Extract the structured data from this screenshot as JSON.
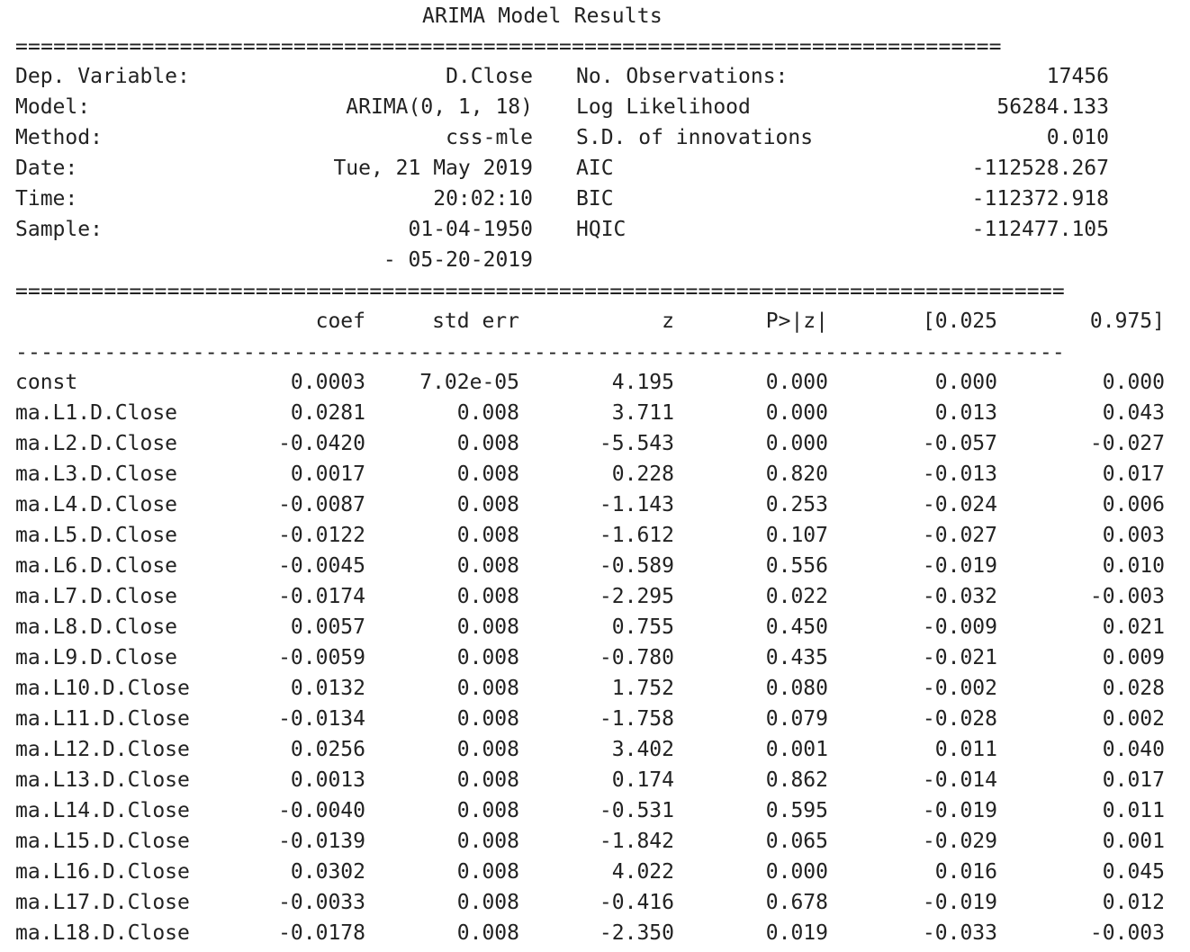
{
  "title": "ARIMA Model Results",
  "separators": {
    "double_short": "==============================================================================",
    "double_long": "===================================================================================",
    "single_long": "-----------------------------------------------------------------------------------"
  },
  "summary": {
    "left": [
      {
        "label": "Dep. Variable:",
        "value": "D.Close"
      },
      {
        "label": "Model:",
        "value": "ARIMA(0, 1, 18)"
      },
      {
        "label": "Method:",
        "value": "css-mle"
      },
      {
        "label": "Date:",
        "value": "Tue, 21 May 2019"
      },
      {
        "label": "Time:",
        "value": "20:02:10"
      },
      {
        "label": "Sample:",
        "value": "01-04-1950"
      },
      {
        "label": "",
        "value": "- 05-20-2019"
      }
    ],
    "right": [
      {
        "label": "No. Observations:",
        "value": "17456"
      },
      {
        "label": "Log Likelihood",
        "value": "56284.133"
      },
      {
        "label": "S.D. of innovations",
        "value": "0.010"
      },
      {
        "label": "AIC",
        "value": "-112528.267"
      },
      {
        "label": "BIC",
        "value": "-112372.918"
      },
      {
        "label": "HQIC",
        "value": "-112477.105"
      }
    ]
  },
  "coef_table": {
    "headers": [
      "coef",
      "std err",
      "z",
      "P>|z|",
      "[0.025",
      "0.975]"
    ],
    "rows": [
      {
        "name": "const",
        "coef": "0.0003",
        "std_err": "7.02e-05",
        "z": "4.195",
        "p": "0.000",
        "lo": "0.000",
        "hi": "0.000"
      },
      {
        "name": "ma.L1.D.Close",
        "coef": "0.0281",
        "std_err": "0.008",
        "z": "3.711",
        "p": "0.000",
        "lo": "0.013",
        "hi": "0.043"
      },
      {
        "name": "ma.L2.D.Close",
        "coef": "-0.0420",
        "std_err": "0.008",
        "z": "-5.543",
        "p": "0.000",
        "lo": "-0.057",
        "hi": "-0.027"
      },
      {
        "name": "ma.L3.D.Close",
        "coef": "0.0017",
        "std_err": "0.008",
        "z": "0.228",
        "p": "0.820",
        "lo": "-0.013",
        "hi": "0.017"
      },
      {
        "name": "ma.L4.D.Close",
        "coef": "-0.0087",
        "std_err": "0.008",
        "z": "-1.143",
        "p": "0.253",
        "lo": "-0.024",
        "hi": "0.006"
      },
      {
        "name": "ma.L5.D.Close",
        "coef": "-0.0122",
        "std_err": "0.008",
        "z": "-1.612",
        "p": "0.107",
        "lo": "-0.027",
        "hi": "0.003"
      },
      {
        "name": "ma.L6.D.Close",
        "coef": "-0.0045",
        "std_err": "0.008",
        "z": "-0.589",
        "p": "0.556",
        "lo": "-0.019",
        "hi": "0.010"
      },
      {
        "name": "ma.L7.D.Close",
        "coef": "-0.0174",
        "std_err": "0.008",
        "z": "-2.295",
        "p": "0.022",
        "lo": "-0.032",
        "hi": "-0.003"
      },
      {
        "name": "ma.L8.D.Close",
        "coef": "0.0057",
        "std_err": "0.008",
        "z": "0.755",
        "p": "0.450",
        "lo": "-0.009",
        "hi": "0.021"
      },
      {
        "name": "ma.L9.D.Close",
        "coef": "-0.0059",
        "std_err": "0.008",
        "z": "-0.780",
        "p": "0.435",
        "lo": "-0.021",
        "hi": "0.009"
      },
      {
        "name": "ma.L10.D.Close",
        "coef": "0.0132",
        "std_err": "0.008",
        "z": "1.752",
        "p": "0.080",
        "lo": "-0.002",
        "hi": "0.028"
      },
      {
        "name": "ma.L11.D.Close",
        "coef": "-0.0134",
        "std_err": "0.008",
        "z": "-1.758",
        "p": "0.079",
        "lo": "-0.028",
        "hi": "0.002"
      },
      {
        "name": "ma.L12.D.Close",
        "coef": "0.0256",
        "std_err": "0.008",
        "z": "3.402",
        "p": "0.001",
        "lo": "0.011",
        "hi": "0.040"
      },
      {
        "name": "ma.L13.D.Close",
        "coef": "0.0013",
        "std_err": "0.008",
        "z": "0.174",
        "p": "0.862",
        "lo": "-0.014",
        "hi": "0.017"
      },
      {
        "name": "ma.L14.D.Close",
        "coef": "-0.0040",
        "std_err": "0.008",
        "z": "-0.531",
        "p": "0.595",
        "lo": "-0.019",
        "hi": "0.011"
      },
      {
        "name": "ma.L15.D.Close",
        "coef": "-0.0139",
        "std_err": "0.008",
        "z": "-1.842",
        "p": "0.065",
        "lo": "-0.029",
        "hi": "0.001"
      },
      {
        "name": "ma.L16.D.Close",
        "coef": "0.0302",
        "std_err": "0.008",
        "z": "4.022",
        "p": "0.000",
        "lo": "0.016",
        "hi": "0.045"
      },
      {
        "name": "ma.L17.D.Close",
        "coef": "-0.0033",
        "std_err": "0.008",
        "z": "-0.416",
        "p": "0.678",
        "lo": "-0.019",
        "hi": "0.012"
      },
      {
        "name": "ma.L18.D.Close",
        "coef": "-0.0178",
        "std_err": "0.008",
        "z": "-2.350",
        "p": "0.019",
        "lo": "-0.033",
        "hi": "-0.003"
      }
    ]
  }
}
